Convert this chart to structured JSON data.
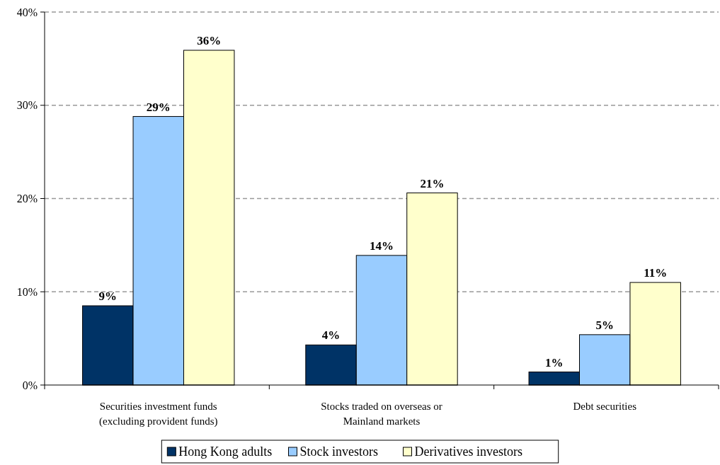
{
  "chart_data": {
    "type": "bar",
    "categories": [
      "Securities investment funds (excluding provident funds)",
      "Stocks traded on overseas or Mainland markets",
      "Debt securities"
    ],
    "series": [
      {
        "name": "Hong Kong adults",
        "color": "#003366",
        "values": [
          8.5,
          4.3,
          1.4
        ],
        "value_labels": [
          "9%",
          "4%",
          "1%"
        ]
      },
      {
        "name": "Stock investors",
        "color": "#99ccff",
        "values": [
          28.8,
          13.9,
          5.4
        ],
        "value_labels": [
          "29%",
          "14%",
          "5%"
        ]
      },
      {
        "name": "Derivatives investors",
        "color": "#ffffcc",
        "values": [
          35.9,
          20.6,
          11.0
        ],
        "value_labels": [
          "36%",
          "21%",
          "11%"
        ]
      }
    ],
    "ylim": [
      0,
      40
    ],
    "yticks": [
      {
        "value": 0,
        "label": "0%"
      },
      {
        "value": 10,
        "label": "10%"
      },
      {
        "value": 20,
        "label": "20%"
      },
      {
        "value": 30,
        "label": "30%"
      },
      {
        "value": 40,
        "label": "40%"
      }
    ],
    "grid": "y",
    "legend": "bottom"
  }
}
